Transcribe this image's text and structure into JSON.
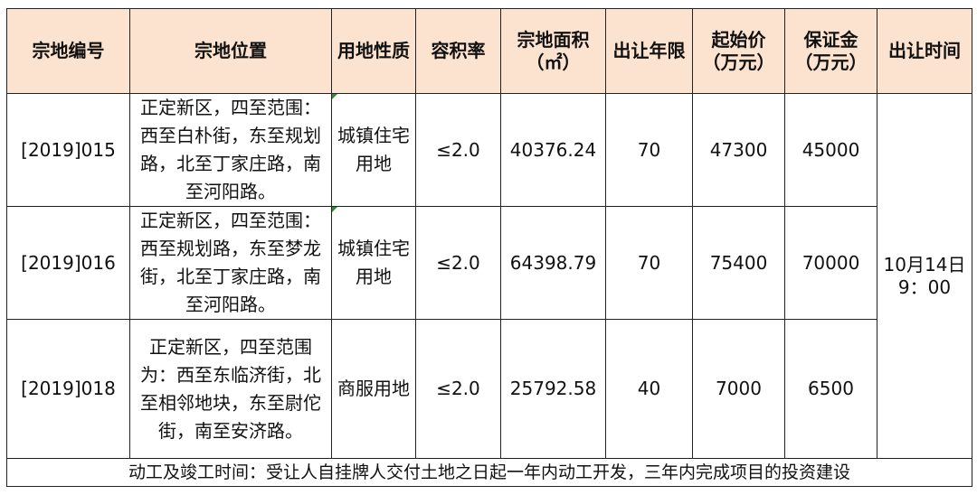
{
  "headers": [
    "宗地编号",
    "宗地位置",
    "用地性质",
    "容积率",
    "宗地面积\n（㎡）",
    "出让年限",
    "起始价\n（万元）",
    "保证金\n（万元）",
    "出让时间"
  ],
  "header_lines": {
    "area": [
      "宗地面积",
      "（㎡）"
    ],
    "start_price": [
      "起始价",
      "（万元）"
    ],
    "deposit": [
      "保证金",
      "（万元）"
    ]
  },
  "rows": [
    {
      "id": "[2019]015",
      "location": "正定新区，四至范围：西至白朴街，东至规划路，北至丁家庄路，南至河阳路。",
      "usage": "城镇住宅用地",
      "far": "≤2.0",
      "area": "40376.24",
      "years": "70",
      "start_price": "47300",
      "deposit": "45000"
    },
    {
      "id": "[2019]016",
      "location": "正定新区，四至范围：西至规划路，东至梦龙街，北至丁家庄路，南至河阳路。",
      "usage": "城镇住宅用地",
      "far": "≤2.0",
      "area": "64398.79",
      "years": "70",
      "start_price": "75400",
      "deposit": "70000"
    },
    {
      "id": "[2019]018",
      "location": "正定新区，四至范围为：西至东临济街，北至相邻地块，东至尉佗街，南至安济路。",
      "usage": "商服用地",
      "far": "≤2.0",
      "area": "25792.58",
      "years": "40",
      "start_price": "7000",
      "deposit": "6500"
    }
  ],
  "sale_time": [
    "10月14日",
    "9：00"
  ],
  "footer": "动工及竣工时间：受让人自挂牌人交付土地之日起一年内动工开发，三年内完成项目的投资建设",
  "colors": {
    "header_bg": "#fbe3cf",
    "border": "#222222",
    "marker": "#2e8b3a"
  }
}
